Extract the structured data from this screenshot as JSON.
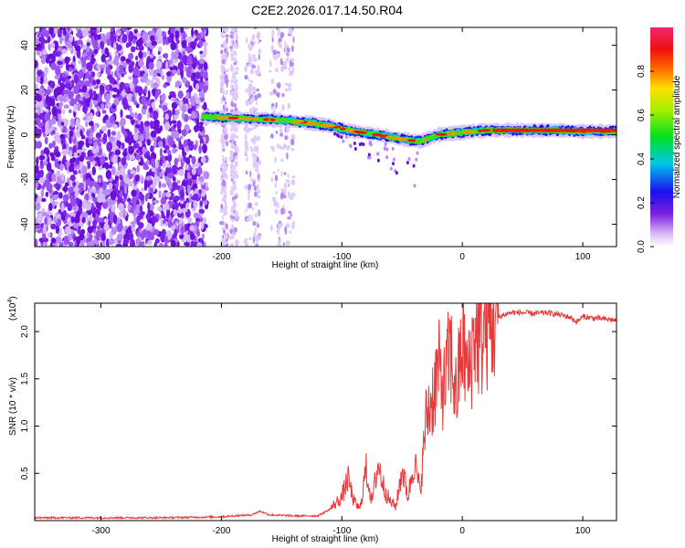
{
  "title": "C2E2.2026.017.14.50.R04",
  "chart_data": [
    {
      "type": "heatmap",
      "xlabel": "Height of straight line (km)",
      "ylabel": "Frequency (Hz)",
      "xlim": [
        -355,
        128
      ],
      "ylim": [
        -50,
        48
      ],
      "xticks": [
        -300,
        -200,
        -100,
        0,
        100
      ],
      "yticks": [
        -40,
        -20,
        0,
        20,
        40
      ],
      "colorbar": {
        "label": "Normalized spectral amplitude",
        "range": [
          0,
          1
        ],
        "ticks": [
          0.0,
          0.2,
          0.4,
          0.6,
          0.8
        ]
      },
      "ridge": {
        "x": [
          -215,
          -190,
          -170,
          -150,
          -130,
          -110,
          -90,
          -70,
          -50,
          -35,
          -20,
          0,
          20,
          50,
          80,
          100,
          128
        ],
        "freq": [
          8,
          7.5,
          7,
          6.5,
          5.5,
          4,
          1.5,
          0,
          -2,
          -3,
          0,
          1,
          2,
          2,
          2,
          1.5,
          1.5
        ]
      }
    },
    {
      "type": "line",
      "xlabel": "Height of straight line (km)",
      "ylabel": "SNR (10 * v/v)",
      "multiplier": "(x10^4)",
      "multiplier_base": "(x10",
      "multiplier_exp": "4",
      "multiplier_close": ")",
      "xlim": [
        -355,
        128
      ],
      "ylim": [
        0,
        2.3
      ],
      "xticks": [
        -300,
        -200,
        -100,
        0,
        100
      ],
      "yticks": [
        0.5,
        1.0,
        1.5,
        2.0
      ],
      "series": [
        {
          "name": "SNR",
          "color": "#e83a3a",
          "x": [
            -355,
            -250,
            -200,
            -190,
            -175,
            -168,
            -160,
            -140,
            -120,
            -110,
            -100,
            -95,
            -90,
            -85,
            -80,
            -75,
            -70,
            -65,
            -60,
            -55,
            -50,
            -45,
            -40,
            -35,
            -30,
            -25,
            -20,
            -15,
            -10,
            -5,
            0,
            5,
            10,
            15,
            20,
            25,
            30,
            35,
            40,
            50,
            60,
            70,
            80,
            90,
            95,
            100,
            110,
            120,
            128
          ],
          "y": [
            0.03,
            0.03,
            0.04,
            0.05,
            0.06,
            0.1,
            0.06,
            0.05,
            0.05,
            0.12,
            0.25,
            0.45,
            0.2,
            0.12,
            0.55,
            0.2,
            0.6,
            0.35,
            0.2,
            0.15,
            0.55,
            0.25,
            0.65,
            0.3,
            1.1,
            1.3,
            1.6,
            1.4,
            1.8,
            1.3,
            1.9,
            1.5,
            2.0,
            1.9,
            2.05,
            2.1,
            2.15,
            2.18,
            2.2,
            2.2,
            2.19,
            2.2,
            2.18,
            2.15,
            2.1,
            2.16,
            2.14,
            2.13,
            2.12
          ]
        }
      ]
    }
  ]
}
